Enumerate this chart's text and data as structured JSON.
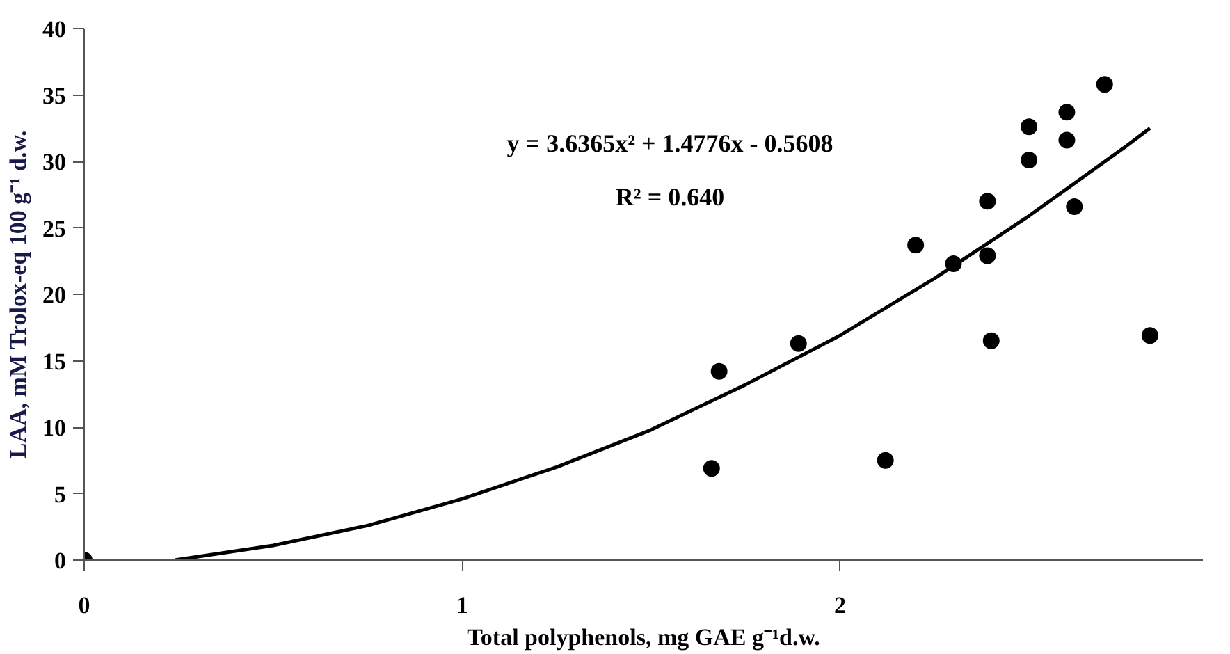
{
  "chart_data": {
    "type": "scatter",
    "xlabel": "Total polyphenols, mg GAE g⁻¹d.w.",
    "ylabel": "LAA, mM Trolox-eq 100 g⁻¹ d.w.",
    "xlim": [
      0,
      2.96
    ],
    "xticks": [
      0,
      1,
      2
    ],
    "ylim": [
      0,
      40
    ],
    "yticks": [
      0,
      5,
      10,
      15,
      20,
      25,
      30,
      35,
      40
    ],
    "grid": false,
    "marker": "circle",
    "series": [
      {
        "color": "#000000",
        "x": [
          0,
          1.66,
          1.68,
          1.89,
          2.12,
          2.2,
          2.3,
          2.39,
          2.39,
          2.4,
          2.5,
          2.5,
          2.6,
          2.6,
          2.62,
          2.7,
          2.82
        ],
        "values": [
          0,
          6.9,
          14.2,
          16.3,
          7.5,
          23.7,
          22.3,
          27.0,
          22.9,
          16.5,
          32.6,
          30.1,
          33.7,
          31.6,
          26.6,
          35.8,
          16.9
        ]
      },
      {
        "type": "line",
        "color": "#000000",
        "marker": "none",
        "line_style": "solid",
        "x": [
          0.24,
          0.5,
          0.75,
          1,
          1.25,
          1.5,
          1.75,
          2,
          2.25,
          2.5,
          2.75,
          2.82
        ],
        "values": [
          0,
          1.1,
          2.6,
          4.6,
          7.0,
          9.8,
          13.2,
          16.9,
          21.2,
          25.9,
          31.0,
          32.5
        ]
      }
    ],
    "annotations": [
      "y = 3.6365x² + 1.4776x - 0.5608",
      "R² = 0.640"
    ]
  }
}
